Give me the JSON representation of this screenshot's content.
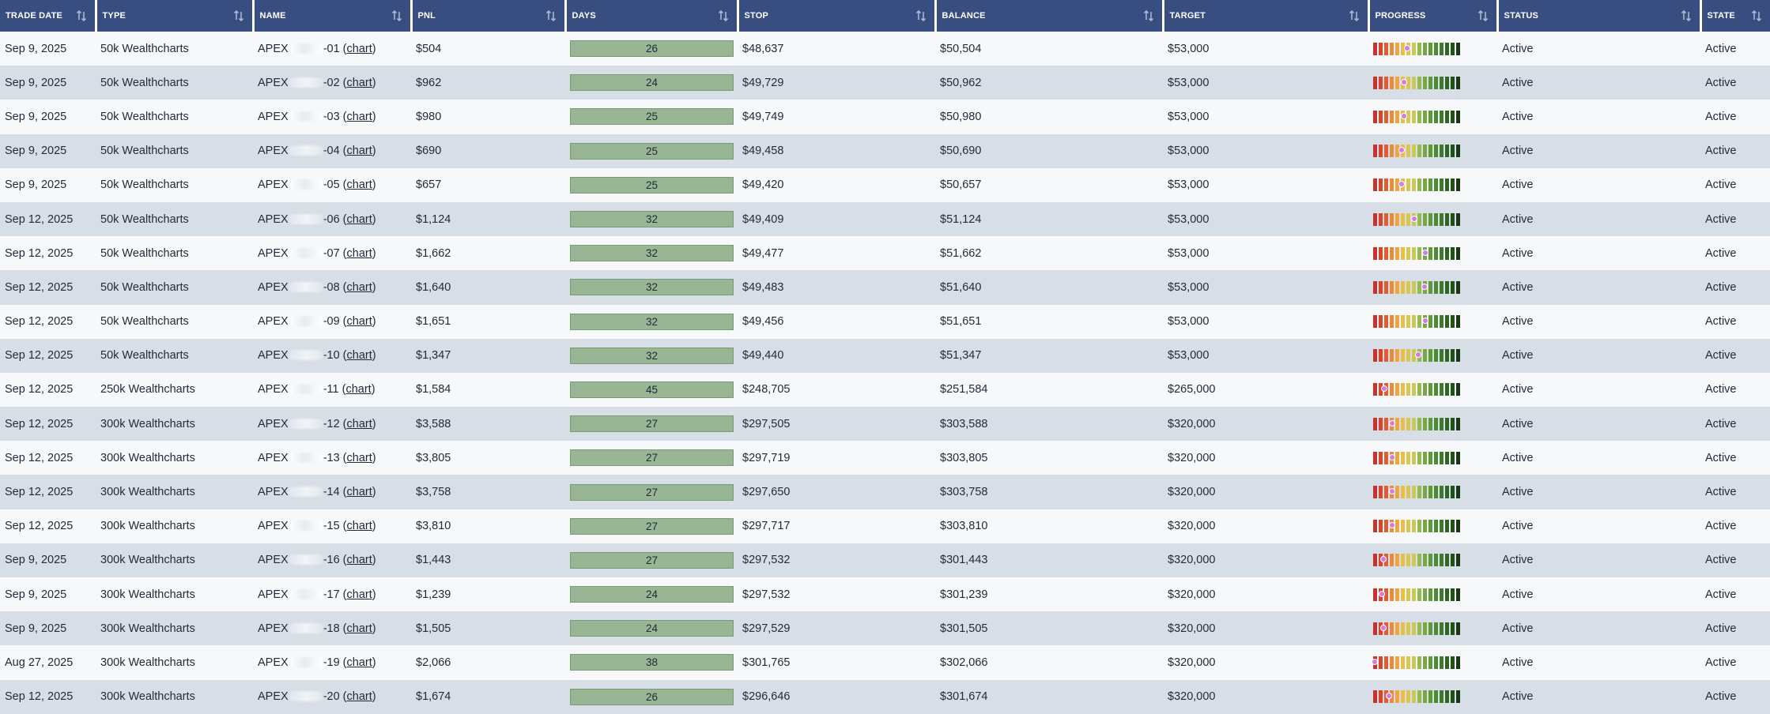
{
  "columns": [
    {
      "key": "trade_date",
      "label": "TRADE DATE"
    },
    {
      "key": "type",
      "label": "TYPE"
    },
    {
      "key": "name",
      "label": "NAME"
    },
    {
      "key": "pnl",
      "label": "PNL"
    },
    {
      "key": "days",
      "label": "DAYS"
    },
    {
      "key": "stop",
      "label": "STOP"
    },
    {
      "key": "balance",
      "label": "BALANCE"
    },
    {
      "key": "target",
      "label": "TARGET"
    },
    {
      "key": "progress",
      "label": "PROGRESS"
    },
    {
      "key": "status",
      "label": "STATUS"
    },
    {
      "key": "state",
      "label": "STATE"
    }
  ],
  "sort_icon": "sort-arrows-icon",
  "chart_link_label": "chart",
  "name_prefix": "APEX",
  "progress_palette": [
    "#c8322a",
    "#d6452f",
    "#e05c32",
    "#ea8a3a",
    "#f0a441",
    "#e8be4a",
    "#dcc653",
    "#c9c958",
    "#96b850",
    "#78a843",
    "#5f9a3a",
    "#4c8b33",
    "#3d7a2c",
    "#2f6624",
    "#224f1b",
    "#173a13"
  ],
  "rows": [
    {
      "trade_date": "Sep 9, 2025",
      "type": "50k Wealthcharts",
      "name_suffix": "-01",
      "pnl": "$504",
      "days": "26",
      "stop": "$48,637",
      "balance": "$50,504",
      "target": "$53,000",
      "progress": 0.39,
      "status": "Active",
      "state": "Active"
    },
    {
      "trade_date": "Sep 9, 2025",
      "type": "50k Wealthcharts",
      "name_suffix": "-02",
      "pnl": "$962",
      "days": "24",
      "stop": "$49,729",
      "balance": "$50,962",
      "target": "$53,000",
      "progress": 0.35,
      "status": "Active",
      "state": "Active"
    },
    {
      "trade_date": "Sep 9, 2025",
      "type": "50k Wealthcharts",
      "name_suffix": "-03",
      "pnl": "$980",
      "days": "25",
      "stop": "$49,749",
      "balance": "$50,980",
      "target": "$53,000",
      "progress": 0.35,
      "status": "Active",
      "state": "Active"
    },
    {
      "trade_date": "Sep 9, 2025",
      "type": "50k Wealthcharts",
      "name_suffix": "-04",
      "pnl": "$690",
      "days": "25",
      "stop": "$49,458",
      "balance": "$50,690",
      "target": "$53,000",
      "progress": 0.33,
      "status": "Active",
      "state": "Active"
    },
    {
      "trade_date": "Sep 9, 2025",
      "type": "50k Wealthcharts",
      "name_suffix": "-05",
      "pnl": "$657",
      "days": "25",
      "stop": "$49,420",
      "balance": "$50,657",
      "target": "$53,000",
      "progress": 0.33,
      "status": "Active",
      "state": "Active"
    },
    {
      "trade_date": "Sep 12, 2025",
      "type": "50k Wealthcharts",
      "name_suffix": "-06",
      "pnl": "$1,124",
      "days": "32",
      "stop": "$49,409",
      "balance": "$51,124",
      "target": "$53,000",
      "progress": 0.47,
      "status": "Active",
      "state": "Active"
    },
    {
      "trade_date": "Sep 12, 2025",
      "type": "50k Wealthcharts",
      "name_suffix": "-07",
      "pnl": "$1,662",
      "days": "32",
      "stop": "$49,477",
      "balance": "$51,662",
      "target": "$53,000",
      "progress": 0.6,
      "status": "Active",
      "state": "Active"
    },
    {
      "trade_date": "Sep 12, 2025",
      "type": "50k Wealthcharts",
      "name_suffix": "-08",
      "pnl": "$1,640",
      "days": "32",
      "stop": "$49,483",
      "balance": "$51,640",
      "target": "$53,000",
      "progress": 0.59,
      "status": "Active",
      "state": "Active"
    },
    {
      "trade_date": "Sep 12, 2025",
      "type": "50k Wealthcharts",
      "name_suffix": "-09",
      "pnl": "$1,651",
      "days": "32",
      "stop": "$49,456",
      "balance": "$51,651",
      "target": "$53,000",
      "progress": 0.6,
      "status": "Active",
      "state": "Active"
    },
    {
      "trade_date": "Sep 12, 2025",
      "type": "50k Wealthcharts",
      "name_suffix": "-10",
      "pnl": "$1,347",
      "days": "32",
      "stop": "$49,440",
      "balance": "$51,347",
      "target": "$53,000",
      "progress": 0.52,
      "status": "Active",
      "state": "Active"
    },
    {
      "trade_date": "Sep 12, 2025",
      "type": "250k Wealthcharts",
      "name_suffix": "-11",
      "pnl": "$1,584",
      "days": "45",
      "stop": "$248,705",
      "balance": "$251,584",
      "target": "$265,000",
      "progress": 0.13,
      "status": "Active",
      "state": "Active"
    },
    {
      "trade_date": "Sep 12, 2025",
      "type": "300k Wealthcharts",
      "name_suffix": "-12",
      "pnl": "$3,588",
      "days": "27",
      "stop": "$297,505",
      "balance": "$303,588",
      "target": "$320,000",
      "progress": 0.22,
      "status": "Active",
      "state": "Active"
    },
    {
      "trade_date": "Sep 12, 2025",
      "type": "300k Wealthcharts",
      "name_suffix": "-13",
      "pnl": "$3,805",
      "days": "27",
      "stop": "$297,719",
      "balance": "$303,805",
      "target": "$320,000",
      "progress": 0.22,
      "status": "Active",
      "state": "Active"
    },
    {
      "trade_date": "Sep 12, 2025",
      "type": "300k Wealthcharts",
      "name_suffix": "-14",
      "pnl": "$3,758",
      "days": "27",
      "stop": "$297,650",
      "balance": "$303,758",
      "target": "$320,000",
      "progress": 0.22,
      "status": "Active",
      "state": "Active"
    },
    {
      "trade_date": "Sep 12, 2025",
      "type": "300k Wealthcharts",
      "name_suffix": "-15",
      "pnl": "$3,810",
      "days": "27",
      "stop": "$297,717",
      "balance": "$303,810",
      "target": "$320,000",
      "progress": 0.22,
      "status": "Active",
      "state": "Active"
    },
    {
      "trade_date": "Sep 9, 2025",
      "type": "300k Wealthcharts",
      "name_suffix": "-16",
      "pnl": "$1,443",
      "days": "27",
      "stop": "$297,532",
      "balance": "$301,443",
      "target": "$320,000",
      "progress": 0.12,
      "status": "Active",
      "state": "Active"
    },
    {
      "trade_date": "Sep 9, 2025",
      "type": "300k Wealthcharts",
      "name_suffix": "-17",
      "pnl": "$1,239",
      "days": "24",
      "stop": "$297,532",
      "balance": "$301,239",
      "target": "$320,000",
      "progress": 0.1,
      "status": "Active",
      "state": "Active"
    },
    {
      "trade_date": "Sep 9, 2025",
      "type": "300k Wealthcharts",
      "name_suffix": "-18",
      "pnl": "$1,505",
      "days": "24",
      "stop": "$297,529",
      "balance": "$301,505",
      "target": "$320,000",
      "progress": 0.12,
      "status": "Active",
      "state": "Active"
    },
    {
      "trade_date": "Aug 27, 2025",
      "type": "300k Wealthcharts",
      "name_suffix": "-19",
      "pnl": "$2,066",
      "days": "38",
      "stop": "$301,765",
      "balance": "$302,066",
      "target": "$320,000",
      "progress": 0.02,
      "status": "Active",
      "state": "Active"
    },
    {
      "trade_date": "Sep 12, 2025",
      "type": "300k Wealthcharts",
      "name_suffix": "-20",
      "pnl": "$1,674",
      "days": "26",
      "stop": "$296,646",
      "balance": "$301,674",
      "target": "$320,000",
      "progress": 0.18,
      "status": "Active",
      "state": "Active"
    }
  ]
}
